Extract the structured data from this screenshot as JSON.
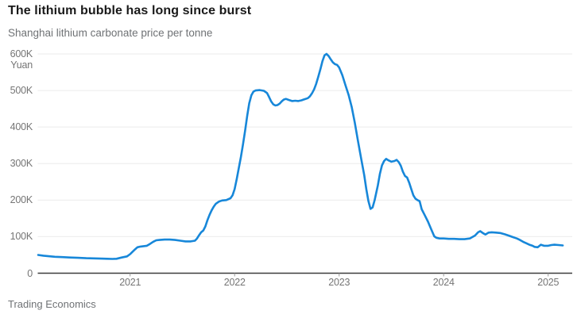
{
  "header": {
    "title": "The lithium bubble has long since burst",
    "subtitle": "Shanghai lithium carbonate price per tonne"
  },
  "footer": {
    "source": "Trading Economics"
  },
  "colors": {
    "line": "#1787d9",
    "title_text": "#191919",
    "muted_text": "#757575",
    "gridline": "#ebebeb",
    "axis_line": "#3c3c3c",
    "tick_mark": "#9a9a9a",
    "background": "#ffffff"
  },
  "chart_data": {
    "type": "line",
    "title": "The lithium bubble has long since burst",
    "subtitle": "Shanghai lithium carbonate price per tonne",
    "unit_label": "Yuan",
    "source": "Trading Economics",
    "xlabel": "",
    "ylabel": "Yuan",
    "grid": "horizontal",
    "legend": "none",
    "x_range_decimal_years": [
      2020.1,
      2025.35
    ],
    "y_range_yuan_thousands": [
      0,
      600
    ],
    "x_ticks": [
      {
        "label": "2021",
        "year": 2021
      },
      {
        "label": "2022",
        "year": 2022
      },
      {
        "label": "2023",
        "year": 2023
      },
      {
        "label": "2024",
        "year": 2024
      },
      {
        "label": "2025",
        "year": 2025
      }
    ],
    "y_ticks": [
      {
        "label": "600K",
        "value": 600
      },
      {
        "label": "500K",
        "value": 500
      },
      {
        "label": "400K",
        "value": 400
      },
      {
        "label": "300K",
        "value": 300
      },
      {
        "label": "200K",
        "value": 200
      },
      {
        "label": "100K",
        "value": 100
      },
      {
        "label": "0",
        "value": 0
      }
    ],
    "series": [
      {
        "name": "Shanghai lithium carbonate price per tonne (thousand yuan)",
        "color": "#1787d9",
        "points": [
          [
            2020.12,
            50
          ],
          [
            2020.17,
            48
          ],
          [
            2020.22,
            46.5
          ],
          [
            2020.28,
            45
          ],
          [
            2020.35,
            44
          ],
          [
            2020.42,
            43
          ],
          [
            2020.5,
            42
          ],
          [
            2020.58,
            41
          ],
          [
            2020.65,
            40.5
          ],
          [
            2020.72,
            40
          ],
          [
            2020.78,
            39.5
          ],
          [
            2020.83,
            39
          ],
          [
            2020.87,
            39.5
          ],
          [
            2020.92,
            43
          ],
          [
            2020.97,
            46
          ],
          [
            2021.0,
            52
          ],
          [
            2021.02,
            58
          ],
          [
            2021.05,
            66
          ],
          [
            2021.07,
            71
          ],
          [
            2021.1,
            73
          ],
          [
            2021.13,
            74
          ],
          [
            2021.16,
            75
          ],
          [
            2021.19,
            80
          ],
          [
            2021.22,
            86
          ],
          [
            2021.25,
            90
          ],
          [
            2021.28,
            91
          ],
          [
            2021.33,
            92
          ],
          [
            2021.38,
            92
          ],
          [
            2021.43,
            91
          ],
          [
            2021.48,
            89
          ],
          [
            2021.53,
            87
          ],
          [
            2021.58,
            87
          ],
          [
            2021.62,
            89
          ],
          [
            2021.64,
            95
          ],
          [
            2021.66,
            104
          ],
          [
            2021.68,
            112
          ],
          [
            2021.7,
            117
          ],
          [
            2021.72,
            128
          ],
          [
            2021.74,
            145
          ],
          [
            2021.76,
            160
          ],
          [
            2021.78,
            172
          ],
          [
            2021.8,
            182
          ],
          [
            2021.82,
            190
          ],
          [
            2021.85,
            196
          ],
          [
            2021.88,
            199
          ],
          [
            2021.92,
            200
          ],
          [
            2021.96,
            205
          ],
          [
            2021.98,
            213
          ],
          [
            2022.0,
            230
          ],
          [
            2022.02,
            258
          ],
          [
            2022.04,
            288
          ],
          [
            2022.06,
            318
          ],
          [
            2022.08,
            352
          ],
          [
            2022.1,
            390
          ],
          [
            2022.12,
            430
          ],
          [
            2022.14,
            465
          ],
          [
            2022.16,
            487
          ],
          [
            2022.18,
            497
          ],
          [
            2022.2,
            500
          ],
          [
            2022.24,
            501
          ],
          [
            2022.28,
            499
          ],
          [
            2022.31,
            493
          ],
          [
            2022.33,
            482
          ],
          [
            2022.35,
            470
          ],
          [
            2022.37,
            462
          ],
          [
            2022.39,
            459
          ],
          [
            2022.41,
            460
          ],
          [
            2022.43,
            464
          ],
          [
            2022.45,
            470
          ],
          [
            2022.47,
            475
          ],
          [
            2022.49,
            477
          ],
          [
            2022.52,
            474
          ],
          [
            2022.55,
            471
          ],
          [
            2022.58,
            472
          ],
          [
            2022.61,
            471
          ],
          [
            2022.64,
            473
          ],
          [
            2022.67,
            476
          ],
          [
            2022.7,
            479
          ],
          [
            2022.72,
            484
          ],
          [
            2022.74,
            492
          ],
          [
            2022.76,
            503
          ],
          [
            2022.78,
            518
          ],
          [
            2022.8,
            537
          ],
          [
            2022.82,
            558
          ],
          [
            2022.84,
            580
          ],
          [
            2022.86,
            596
          ],
          [
            2022.88,
            600
          ],
          [
            2022.9,
            594
          ],
          [
            2022.92,
            585
          ],
          [
            2022.94,
            577
          ],
          [
            2022.96,
            572
          ],
          [
            2022.98,
            570
          ],
          [
            2023.0,
            563
          ],
          [
            2023.03,
            542
          ],
          [
            2023.06,
            515
          ],
          [
            2023.09,
            488
          ],
          [
            2023.12,
            455
          ],
          [
            2023.15,
            412
          ],
          [
            2023.18,
            362
          ],
          [
            2023.21,
            315
          ],
          [
            2023.24,
            268
          ],
          [
            2023.26,
            230
          ],
          [
            2023.28,
            198
          ],
          [
            2023.3,
            176
          ],
          [
            2023.32,
            180
          ],
          [
            2023.34,
            200
          ],
          [
            2023.37,
            240
          ],
          [
            2023.39,
            272
          ],
          [
            2023.41,
            295
          ],
          [
            2023.43,
            307
          ],
          [
            2023.45,
            313
          ],
          [
            2023.47,
            309
          ],
          [
            2023.5,
            305
          ],
          [
            2023.53,
            307
          ],
          [
            2023.55,
            310
          ],
          [
            2023.57,
            304
          ],
          [
            2023.59,
            294
          ],
          [
            2023.61,
            278
          ],
          [
            2023.63,
            266
          ],
          [
            2023.65,
            262
          ],
          [
            2023.67,
            248
          ],
          [
            2023.69,
            230
          ],
          [
            2023.71,
            213
          ],
          [
            2023.73,
            204
          ],
          [
            2023.75,
            200
          ],
          [
            2023.77,
            197
          ],
          [
            2023.79,
            175
          ],
          [
            2023.82,
            158
          ],
          [
            2023.85,
            141
          ],
          [
            2023.88,
            121
          ],
          [
            2023.91,
            101
          ],
          [
            2023.93,
            97
          ],
          [
            2023.96,
            95
          ],
          [
            2024.0,
            95
          ],
          [
            2024.05,
            94
          ],
          [
            2024.1,
            94
          ],
          [
            2024.15,
            93
          ],
          [
            2024.2,
            93
          ],
          [
            2024.25,
            95
          ],
          [
            2024.3,
            103
          ],
          [
            2024.33,
            112
          ],
          [
            2024.35,
            115
          ],
          [
            2024.38,
            109
          ],
          [
            2024.4,
            106
          ],
          [
            2024.43,
            111
          ],
          [
            2024.46,
            112
          ],
          [
            2024.5,
            111
          ],
          [
            2024.54,
            110
          ],
          [
            2024.58,
            107
          ],
          [
            2024.62,
            103
          ],
          [
            2024.66,
            99
          ],
          [
            2024.7,
            95
          ],
          [
            2024.73,
            91
          ],
          [
            2024.76,
            86
          ],
          [
            2024.79,
            82
          ],
          [
            2024.82,
            78
          ],
          [
            2024.85,
            75
          ],
          [
            2024.87,
            72
          ],
          [
            2024.9,
            71
          ],
          [
            2024.93,
            78
          ],
          [
            2024.96,
            75
          ],
          [
            2025.0,
            75
          ],
          [
            2025.03,
            77
          ],
          [
            2025.06,
            78
          ],
          [
            2025.1,
            77
          ],
          [
            2025.14,
            76
          ]
        ]
      }
    ]
  }
}
